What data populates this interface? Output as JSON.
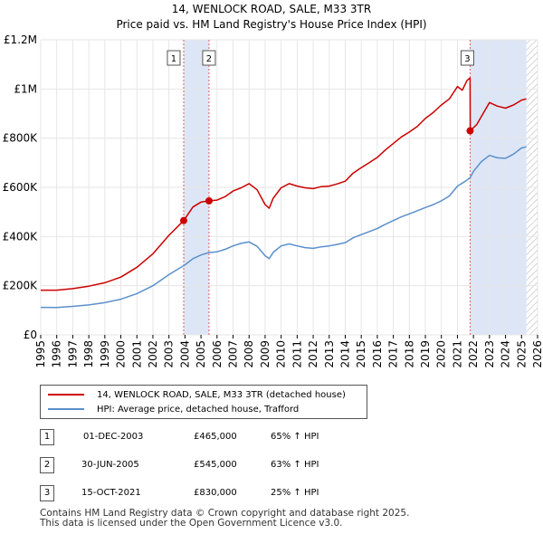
{
  "title_line1": "14, WENLOCK ROAD, SALE, M33 3TR",
  "title_line2": "Price paid vs. HM Land Registry's House Price Index (HPI)",
  "chart_data": {
    "type": "line",
    "x_ticks": [
      "1995",
      "1996",
      "1997",
      "1998",
      "1999",
      "2000",
      "2001",
      "2002",
      "2003",
      "2004",
      "2005",
      "2006",
      "2007",
      "2008",
      "2009",
      "2010",
      "2011",
      "2012",
      "2013",
      "2014",
      "2015",
      "2016",
      "2017",
      "2018",
      "2019",
      "2020",
      "2021",
      "2022",
      "2023",
      "2024",
      "2025",
      "2026"
    ],
    "y_ticks": [
      "£0",
      "£200K",
      "£400K",
      "£600K",
      "£800K",
      "£1M",
      "£1.2M"
    ],
    "y_tick_values": [
      0,
      200000,
      400000,
      600000,
      800000,
      1000000,
      1200000
    ],
    "xlim": [
      1995,
      2026
    ],
    "ylim": [
      0,
      1200000
    ],
    "series": [
      {
        "name": "14, WENLOCK ROAD, SALE, M33 3TR (detached house)",
        "color": "#cc0000",
        "points": [
          [
            1995.0,
            182000
          ],
          [
            1996.0,
            182000
          ],
          [
            1997.0,
            188000
          ],
          [
            1998.0,
            198000
          ],
          [
            1999.0,
            212000
          ],
          [
            2000.0,
            235000
          ],
          [
            2001.0,
            275000
          ],
          [
            2002.0,
            330000
          ],
          [
            2003.0,
            405000
          ],
          [
            2003.92,
            465000
          ],
          [
            2004.5,
            520000
          ],
          [
            2005.0,
            540000
          ],
          [
            2005.5,
            545000
          ],
          [
            2006.0,
            548000
          ],
          [
            2006.5,
            562000
          ],
          [
            2007.0,
            585000
          ],
          [
            2007.5,
            598000
          ],
          [
            2008.0,
            615000
          ],
          [
            2008.5,
            590000
          ],
          [
            2009.0,
            530000
          ],
          [
            2009.25,
            515000
          ],
          [
            2009.5,
            555000
          ],
          [
            2010.0,
            598000
          ],
          [
            2010.5,
            615000
          ],
          [
            2011.0,
            605000
          ],
          [
            2011.5,
            598000
          ],
          [
            2012.0,
            595000
          ],
          [
            2012.5,
            603000
          ],
          [
            2013.0,
            605000
          ],
          [
            2013.5,
            614000
          ],
          [
            2014.0,
            625000
          ],
          [
            2014.5,
            658000
          ],
          [
            2015.0,
            680000
          ],
          [
            2015.5,
            700000
          ],
          [
            2016.0,
            722000
          ],
          [
            2016.5,
            752000
          ],
          [
            2017.0,
            778000
          ],
          [
            2017.5,
            805000
          ],
          [
            2018.0,
            825000
          ],
          [
            2018.5,
            848000
          ],
          [
            2019.0,
            880000
          ],
          [
            2019.5,
            905000
          ],
          [
            2020.0,
            935000
          ],
          [
            2020.5,
            960000
          ],
          [
            2021.0,
            1010000
          ],
          [
            2021.3,
            995000
          ],
          [
            2021.6,
            1035000
          ],
          [
            2021.79,
            1045000
          ],
          [
            2021.8,
            830000
          ],
          [
            2022.2,
            855000
          ],
          [
            2022.6,
            900000
          ],
          [
            2023.0,
            945000
          ],
          [
            2023.5,
            930000
          ],
          [
            2024.0,
            922000
          ],
          [
            2024.5,
            935000
          ],
          [
            2025.0,
            955000
          ],
          [
            2025.3,
            960000
          ]
        ]
      },
      {
        "name": "HPI: Average price, detached house, Trafford",
        "color": "#5b8fcc",
        "points": [
          [
            1995.0,
            112000
          ],
          [
            1996.0,
            111000
          ],
          [
            1997.0,
            116000
          ],
          [
            1998.0,
            122000
          ],
          [
            1999.0,
            131000
          ],
          [
            2000.0,
            145000
          ],
          [
            2001.0,
            168000
          ],
          [
            2002.0,
            200000
          ],
          [
            2003.0,
            245000
          ],
          [
            2004.0,
            285000
          ],
          [
            2004.5,
            310000
          ],
          [
            2005.0,
            325000
          ],
          [
            2005.5,
            335000
          ],
          [
            2006.0,
            338000
          ],
          [
            2006.5,
            348000
          ],
          [
            2007.0,
            362000
          ],
          [
            2007.5,
            372000
          ],
          [
            2008.0,
            378000
          ],
          [
            2008.5,
            360000
          ],
          [
            2009.0,
            322000
          ],
          [
            2009.25,
            310000
          ],
          [
            2009.5,
            335000
          ],
          [
            2010.0,
            362000
          ],
          [
            2010.5,
            370000
          ],
          [
            2011.0,
            362000
          ],
          [
            2011.5,
            355000
          ],
          [
            2012.0,
            352000
          ],
          [
            2012.5,
            358000
          ],
          [
            2013.0,
            362000
          ],
          [
            2013.5,
            368000
          ],
          [
            2014.0,
            375000
          ],
          [
            2014.5,
            395000
          ],
          [
            2015.0,
            408000
          ],
          [
            2015.5,
            420000
          ],
          [
            2016.0,
            433000
          ],
          [
            2016.5,
            450000
          ],
          [
            2017.0,
            465000
          ],
          [
            2017.5,
            480000
          ],
          [
            2018.0,
            492000
          ],
          [
            2018.5,
            505000
          ],
          [
            2019.0,
            518000
          ],
          [
            2019.5,
            530000
          ],
          [
            2020.0,
            545000
          ],
          [
            2020.5,
            565000
          ],
          [
            2021.0,
            605000
          ],
          [
            2021.5,
            625000
          ],
          [
            2021.8,
            640000
          ],
          [
            2022.0,
            665000
          ],
          [
            2022.5,
            705000
          ],
          [
            2023.0,
            730000
          ],
          [
            2023.5,
            720000
          ],
          [
            2024.0,
            718000
          ],
          [
            2024.5,
            735000
          ],
          [
            2025.0,
            760000
          ],
          [
            2025.3,
            765000
          ]
        ]
      }
    ],
    "sales": [
      {
        "label": "1",
        "x": 2003.92,
        "y": 465000
      },
      {
        "label": "2",
        "x": 2005.5,
        "y": 545000
      },
      {
        "label": "3",
        "x": 2021.79,
        "y": 830000
      }
    ],
    "shaded_ranges": [
      [
        2003.92,
        2005.5
      ],
      [
        2021.79,
        2025.3
      ]
    ],
    "hatched_range": [
      2025.3,
      2026
    ]
  },
  "legend": [
    {
      "label": "14, WENLOCK ROAD, SALE, M33 3TR (detached house)",
      "color": "#cc0000"
    },
    {
      "label": "HPI: Average price, detached house, Trafford",
      "color": "#5b8fcc"
    }
  ],
  "table": [
    {
      "num": "1",
      "date": "01-DEC-2003",
      "price": "£465,000",
      "hpi": "65% ↑ HPI"
    },
    {
      "num": "2",
      "date": "30-JUN-2005",
      "price": "£545,000",
      "hpi": "63% ↑ HPI"
    },
    {
      "num": "3",
      "date": "15-OCT-2021",
      "price": "£830,000",
      "hpi": "25% ↑ HPI"
    }
  ],
  "footer_line1": "Contains HM Land Registry data © Crown copyright and database right 2025.",
  "footer_line2": "This data is licensed under the Open Government Licence v3.0."
}
